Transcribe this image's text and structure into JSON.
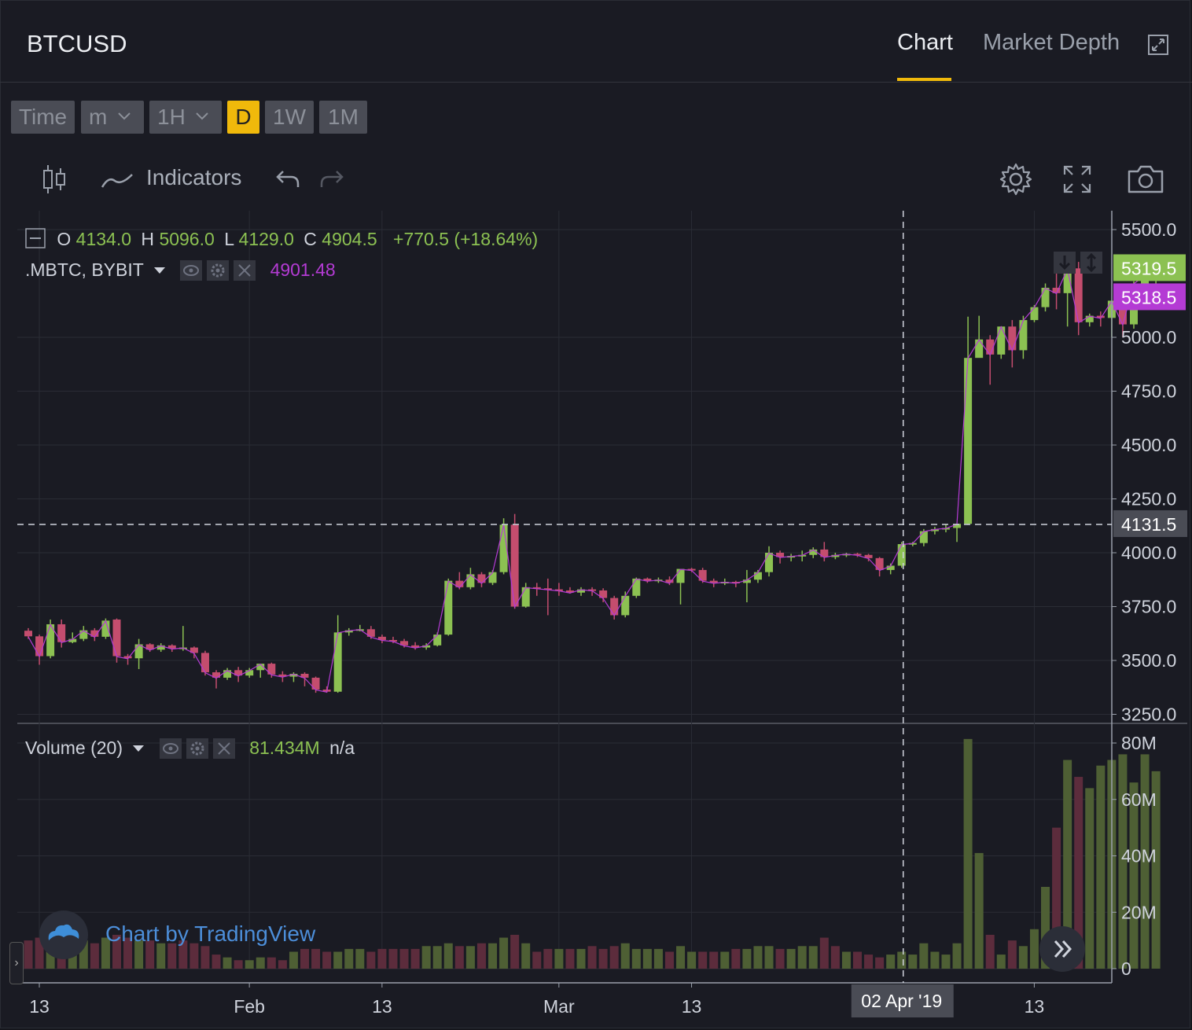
{
  "header": {
    "symbol": "BTCUSD",
    "tabs": [
      {
        "label": "Chart",
        "active": true
      },
      {
        "label": "Market Depth",
        "active": false
      }
    ],
    "expand_icon": "expand-icon"
  },
  "timeframes": [
    {
      "label": "Time",
      "active": false,
      "dropdown": false
    },
    {
      "label": "m",
      "active": false,
      "dropdown": true
    },
    {
      "label": "1H",
      "active": false,
      "dropdown": true
    },
    {
      "label": "D",
      "active": true,
      "dropdown": false
    },
    {
      "label": "1W",
      "active": false,
      "dropdown": false
    },
    {
      "label": "1M",
      "active": false,
      "dropdown": false
    }
  ],
  "toolbar": {
    "chart_type_icon": "candlestick-icon",
    "indicators_label": "Indicators",
    "undo_icon": "undo-icon",
    "redo_icon": "redo-icon",
    "settings_icon": "gear-icon",
    "fullscreen_icon": "fullscreen-icon",
    "snapshot_icon": "camera-icon"
  },
  "ohlc_legend": {
    "o_label": "O",
    "o": "4134.0",
    "h_label": "H",
    "h": "5096.0",
    "l_label": "L",
    "l": "4129.0",
    "c_label": "C",
    "c": "4904.5",
    "change": "+770.5 (+18.64%)"
  },
  "index_legend": {
    "name": ".MBTC, BYBIT",
    "value": "4901.48"
  },
  "volume_legend": {
    "name": "Volume (20)",
    "value": "81.434M",
    "extra": "n/a"
  },
  "price_labels": {
    "last": "5319.5",
    "index": "5318.5",
    "crosshair": "4131.5"
  },
  "crosshair_date": "02 Apr '19",
  "watermark": "Chart by TradingView",
  "colors": {
    "up": "#8cc152",
    "down": "#c44d6e",
    "index_line": "#b43bd4",
    "accent": "#f0b90b",
    "vol_up": "#4e5f34",
    "vol_down": "#5c2c3c"
  },
  "chart_data": {
    "type": "candlestick",
    "title": "BTCUSD",
    "x_tick_labels": [
      "13",
      "Feb",
      "13",
      "Mar",
      "13",
      "13"
    ],
    "x_tick_dates": [
      "2019-01-13",
      "2019-02-01",
      "2019-02-13",
      "2019-03-01",
      "2019-03-13",
      "2019-04-13"
    ],
    "y_tick_labels": [
      "5500.0",
      "5000.0",
      "4750.0",
      "4500.0",
      "4250.0",
      "4000.0",
      "3750.0",
      "3500.0",
      "3250.0"
    ],
    "ylim": [
      3230,
      5580
    ],
    "grid": true,
    "crosshair": {
      "date": "2019-04-02",
      "price": 4131.5
    },
    "volume_axis": {
      "tick_labels": [
        "80M",
        "60M",
        "40M",
        "20M",
        "0"
      ],
      "ylim": [
        0,
        84
      ]
    },
    "dates_start": "2019-01-13",
    "dates_end": "2019-04-18",
    "candles": [
      [
        3638,
        3650,
        3600,
        3612
      ],
      [
        3612,
        3620,
        3480,
        3520
      ],
      [
        3520,
        3690,
        3510,
        3668
      ],
      [
        3668,
        3690,
        3560,
        3585
      ],
      [
        3585,
        3630,
        3580,
        3600
      ],
      [
        3600,
        3660,
        3590,
        3640
      ],
      [
        3640,
        3650,
        3590,
        3610
      ],
      [
        3610,
        3695,
        3600,
        3685
      ],
      [
        3690,
        3695,
        3490,
        3520
      ],
      [
        3520,
        3530,
        3480,
        3510
      ],
      [
        3510,
        3600,
        3460,
        3575
      ],
      [
        3575,
        3580,
        3540,
        3550
      ],
      [
        3550,
        3580,
        3540,
        3570
      ],
      [
        3570,
        3575,
        3540,
        3555
      ],
      [
        3555,
        3660,
        3545,
        3560
      ],
      [
        3560,
        3565,
        3510,
        3535
      ],
      [
        3535,
        3545,
        3430,
        3445
      ],
      [
        3445,
        3455,
        3370,
        3420
      ],
      [
        3420,
        3465,
        3410,
        3455
      ],
      [
        3455,
        3470,
        3400,
        3430
      ],
      [
        3430,
        3465,
        3420,
        3455
      ],
      [
        3455,
        3480,
        3420,
        3485
      ],
      [
        3485,
        3490,
        3420,
        3435
      ],
      [
        3435,
        3450,
        3400,
        3425
      ],
      [
        3425,
        3445,
        3400,
        3438
      ],
      [
        3438,
        3445,
        3380,
        3420
      ],
      [
        3420,
        3425,
        3350,
        3365
      ],
      [
        3365,
        3380,
        3350,
        3355
      ],
      [
        3355,
        3710,
        3350,
        3630
      ],
      [
        3630,
        3650,
        3615,
        3640
      ],
      [
        3640,
        3665,
        3635,
        3645
      ],
      [
        3645,
        3660,
        3600,
        3610
      ],
      [
        3610,
        3620,
        3580,
        3595
      ],
      [
        3595,
        3610,
        3580,
        3590
      ],
      [
        3590,
        3600,
        3560,
        3570
      ],
      [
        3570,
        3585,
        3550,
        3560
      ],
      [
        3560,
        3580,
        3550,
        3570
      ],
      [
        3570,
        3630,
        3565,
        3620
      ],
      [
        3620,
        3880,
        3615,
        3870
      ],
      [
        3870,
        3910,
        3830,
        3840
      ],
      [
        3840,
        3930,
        3830,
        3900
      ],
      [
        3900,
        3910,
        3840,
        3860
      ],
      [
        3860,
        3920,
        3850,
        3910
      ],
      [
        3910,
        4160,
        3900,
        4130
      ],
      [
        4130,
        4180,
        3740,
        3750
      ],
      [
        3750,
        3860,
        3745,
        3840
      ],
      [
        3840,
        3860,
        3800,
        3835
      ],
      [
        3835,
        3880,
        3710,
        3830
      ],
      [
        3830,
        3860,
        3800,
        3825
      ],
      [
        3825,
        3840,
        3810,
        3815
      ],
      [
        3815,
        3840,
        3800,
        3830
      ],
      [
        3830,
        3840,
        3800,
        3825
      ],
      [
        3825,
        3835,
        3770,
        3790
      ],
      [
        3790,
        3800,
        3690,
        3710
      ],
      [
        3710,
        3820,
        3700,
        3800
      ],
      [
        3800,
        3885,
        3790,
        3880
      ],
      [
        3880,
        3885,
        3860,
        3870
      ],
      [
        3870,
        3885,
        3860,
        3875
      ],
      [
        3875,
        3890,
        3850,
        3860
      ],
      [
        3860,
        3920,
        3760,
        3925
      ],
      [
        3925,
        3930,
        3910,
        3920
      ],
      [
        3920,
        3930,
        3860,
        3870
      ],
      [
        3870,
        3880,
        3840,
        3860
      ],
      [
        3860,
        3880,
        3850,
        3865
      ],
      [
        3865,
        3870,
        3840,
        3860
      ],
      [
        3860,
        3920,
        3770,
        3875
      ],
      [
        3875,
        3920,
        3860,
        3910
      ],
      [
        3910,
        4030,
        3890,
        4000
      ],
      [
        4000,
        4010,
        3950,
        3980
      ],
      [
        3980,
        3995,
        3960,
        3985
      ],
      [
        3985,
        4010,
        3960,
        3990
      ],
      [
        3990,
        4025,
        3975,
        4015
      ],
      [
        4015,
        4050,
        3960,
        3980
      ],
      [
        3980,
        4000,
        3970,
        3990
      ],
      [
        3990,
        4000,
        3980,
        3995
      ],
      [
        3995,
        4000,
        3980,
        3990
      ],
      [
        3990,
        3995,
        3960,
        3975
      ],
      [
        3975,
        3980,
        3890,
        3920
      ],
      [
        3920,
        3950,
        3900,
        3940
      ],
      [
        3940,
        4050,
        3930,
        4040
      ],
      [
        4040,
        4050,
        4030,
        4045
      ],
      [
        4045,
        4110,
        4030,
        4100
      ],
      [
        4100,
        4120,
        4085,
        4110
      ],
      [
        4110,
        4130,
        4095,
        4115
      ],
      [
        4115,
        4130,
        4050,
        4134
      ],
      [
        4134,
        5096,
        4129,
        4904.5
      ],
      [
        4904.5,
        5100,
        4920,
        4990
      ],
      [
        4990,
        5010,
        4780,
        4920
      ],
      [
        4920,
        5050,
        4900,
        5050
      ],
      [
        5050,
        5080,
        4860,
        4940
      ],
      [
        4940,
        5100,
        4900,
        5080
      ],
      [
        5080,
        5150,
        5070,
        5140
      ],
      [
        5140,
        5250,
        5120,
        5230
      ],
      [
        5230,
        5310,
        5130,
        5205
      ],
      [
        5205,
        5300,
        5050,
        5320
      ],
      [
        5320,
        5350,
        5010,
        5070
      ],
      [
        5070,
        5110,
        5050,
        5100
      ],
      [
        5100,
        5120,
        5050,
        5090
      ],
      [
        5090,
        5160,
        5000,
        5170
      ],
      [
        5170,
        5200,
        5000,
        5060
      ],
      [
        5060,
        5260,
        5040,
        5250
      ],
      [
        5250,
        5300,
        5200,
        5290
      ],
      [
        5290,
        5330,
        5220,
        5319.5
      ]
    ],
    "volumes": [
      [
        10,
        "down"
      ],
      [
        11,
        "down"
      ],
      [
        10,
        "up"
      ],
      [
        9,
        "down"
      ],
      [
        9,
        "up"
      ],
      [
        10,
        "up"
      ],
      [
        9,
        "down"
      ],
      [
        11,
        "up"
      ],
      [
        12,
        "down"
      ],
      [
        11,
        "down"
      ],
      [
        10,
        "up"
      ],
      [
        10,
        "down"
      ],
      [
        9,
        "up"
      ],
      [
        9,
        "down"
      ],
      [
        10,
        "down"
      ],
      [
        9,
        "down"
      ],
      [
        8,
        "down"
      ],
      [
        5,
        "down"
      ],
      [
        4,
        "up"
      ],
      [
        3,
        "down"
      ],
      [
        3,
        "up"
      ],
      [
        4,
        "up"
      ],
      [
        4,
        "down"
      ],
      [
        3,
        "down"
      ],
      [
        6,
        "up"
      ],
      [
        7,
        "down"
      ],
      [
        7,
        "down"
      ],
      [
        6,
        "down"
      ],
      [
        6,
        "up"
      ],
      [
        7,
        "up"
      ],
      [
        7,
        "up"
      ],
      [
        6,
        "down"
      ],
      [
        7,
        "down"
      ],
      [
        7,
        "down"
      ],
      [
        7,
        "down"
      ],
      [
        7,
        "down"
      ],
      [
        8,
        "up"
      ],
      [
        8,
        "up"
      ],
      [
        9,
        "up"
      ],
      [
        8,
        "down"
      ],
      [
        8,
        "up"
      ],
      [
        9,
        "down"
      ],
      [
        9,
        "up"
      ],
      [
        11,
        "up"
      ],
      [
        12,
        "down"
      ],
      [
        9,
        "up"
      ],
      [
        6,
        "down"
      ],
      [
        7,
        "down"
      ],
      [
        7,
        "up"
      ],
      [
        7,
        "down"
      ],
      [
        7,
        "up"
      ],
      [
        8,
        "down"
      ],
      [
        7,
        "down"
      ],
      [
        8,
        "down"
      ],
      [
        9,
        "up"
      ],
      [
        7,
        "up"
      ],
      [
        7,
        "up"
      ],
      [
        7,
        "up"
      ],
      [
        6,
        "down"
      ],
      [
        8,
        "up"
      ],
      [
        6,
        "up"
      ],
      [
        6,
        "down"
      ],
      [
        6,
        "down"
      ],
      [
        6,
        "up"
      ],
      [
        7,
        "down"
      ],
      [
        7,
        "up"
      ],
      [
        8,
        "up"
      ],
      [
        8,
        "up"
      ],
      [
        7,
        "down"
      ],
      [
        7,
        "up"
      ],
      [
        8,
        "up"
      ],
      [
        8,
        "up"
      ],
      [
        11,
        "down"
      ],
      [
        8,
        "down"
      ],
      [
        6,
        "up"
      ],
      [
        6,
        "down"
      ],
      [
        5,
        "down"
      ],
      [
        4,
        "down"
      ],
      [
        5,
        "up"
      ],
      [
        6,
        "up"
      ],
      [
        5,
        "up"
      ],
      [
        9,
        "up"
      ],
      [
        6,
        "up"
      ],
      [
        5,
        "up"
      ],
      [
        9,
        "up"
      ],
      [
        81.434,
        "up"
      ],
      [
        41,
        "up"
      ],
      [
        12,
        "down"
      ],
      [
        5,
        "up"
      ],
      [
        10,
        "down"
      ],
      [
        8,
        "up"
      ],
      [
        14,
        "up"
      ],
      [
        29,
        "up"
      ],
      [
        50,
        "down"
      ],
      [
        74,
        "up"
      ],
      [
        68,
        "down"
      ],
      [
        64,
        "up"
      ],
      [
        72,
        "up"
      ],
      [
        74,
        "up"
      ],
      [
        76,
        "up"
      ],
      [
        66,
        "up"
      ],
      [
        76,
        "up"
      ],
      [
        70,
        "up"
      ]
    ]
  }
}
